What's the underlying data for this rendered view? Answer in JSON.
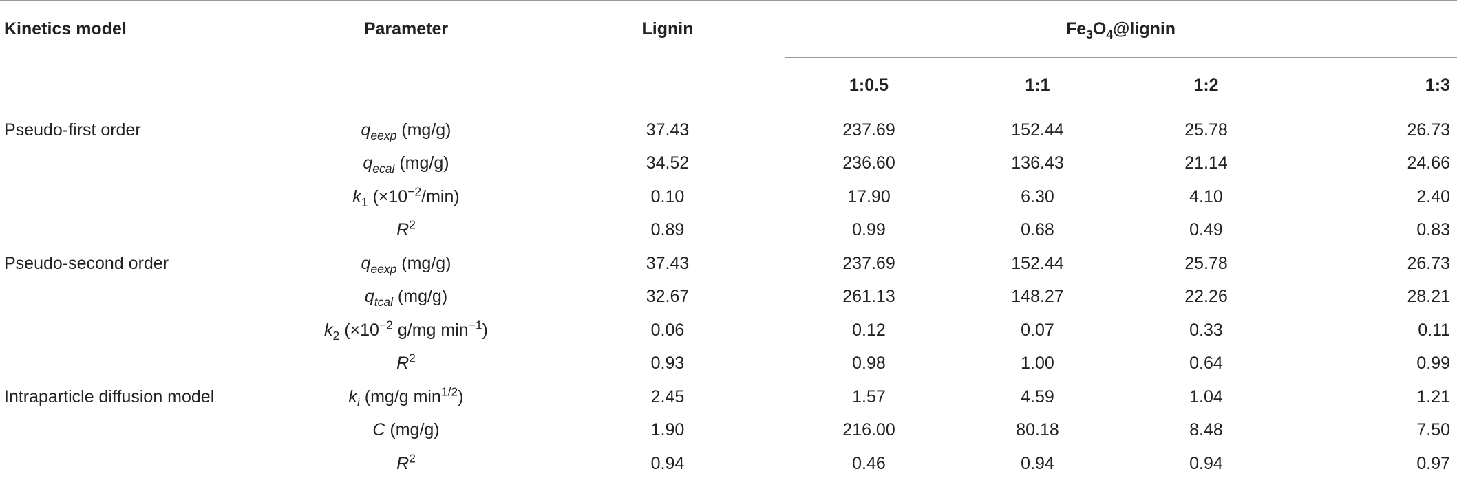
{
  "headers": {
    "kinetics_model": "Kinetics model",
    "parameter": "Parameter",
    "lignin": "Lignin",
    "fe_group": {
      "pre": "Fe",
      "sub1": "3",
      "mid": "O",
      "sub2": "4",
      "post": "@lignin"
    },
    "ratios": [
      "1:0.5",
      "1:1",
      "1:2",
      "1:3"
    ]
  },
  "rows": [
    {
      "model": "Pseudo-first order",
      "param": {
        "sym": "q",
        "sub": "eexp",
        "pre_sup": "",
        "sup": "",
        "unit": " (mg/g)",
        "unit_sup": "",
        "unit_tail": ""
      },
      "values": [
        "37.43",
        "237.69",
        "152.44",
        "25.78",
        "26.73"
      ]
    },
    {
      "model": "",
      "param": {
        "sym": "q",
        "sub": "ecal",
        "pre_sup": "",
        "sup": "",
        "unit": " (mg/g)",
        "unit_sup": "",
        "unit_tail": ""
      },
      "values": [
        "34.52",
        "236.60",
        "136.43",
        "21.14",
        "24.66"
      ]
    },
    {
      "model": "",
      "param": {
        "sym": "k",
        "sub": "1",
        "sub_upright": true,
        "pre_sup": "",
        "sup": "",
        "unit": " (×10",
        "unit_sup": "−2",
        "unit_tail": "/min)"
      },
      "values": [
        "0.10",
        "17.90",
        "6.30",
        "4.10",
        "2.40"
      ]
    },
    {
      "model": "",
      "param": {
        "sym": "R",
        "sub": "",
        "pre_sup": "",
        "sup": "2",
        "unit": "",
        "unit_sup": "",
        "unit_tail": ""
      },
      "values": [
        "0.89",
        "0.99",
        "0.68",
        "0.49",
        "0.83"
      ]
    },
    {
      "model": "Pseudo-second order",
      "param": {
        "sym": "q",
        "sub": "eexp",
        "pre_sup": "",
        "sup": "",
        "unit": " (mg/g)",
        "unit_sup": "",
        "unit_tail": ""
      },
      "values": [
        "37.43",
        "237.69",
        "152.44",
        "25.78",
        "26.73"
      ]
    },
    {
      "model": "",
      "param": {
        "sym": "q",
        "sub": "tcal",
        "pre_sup": "",
        "sup": "",
        "unit": " (mg/g)",
        "unit_sup": "",
        "unit_tail": ""
      },
      "values": [
        "32.67",
        "261.13",
        "148.27",
        "22.26",
        "28.21"
      ]
    },
    {
      "model": "",
      "param": {
        "sym": "k",
        "sub": "2",
        "sub_upright": true,
        "pre_sup": "",
        "sup": "",
        "unit": " (×10",
        "unit_sup": "−2",
        "unit_tail": " g/mg min",
        "tail_sup": "−1",
        "close": ")"
      },
      "values": [
        "0.06",
        "0.12",
        "0.07",
        "0.33",
        "0.11"
      ]
    },
    {
      "model": "",
      "param": {
        "sym": "R",
        "sub": "",
        "pre_sup": "",
        "sup": "2",
        "unit": "",
        "unit_sup": "",
        "unit_tail": ""
      },
      "values": [
        "0.93",
        "0.98",
        "1.00",
        "0.64",
        "0.99"
      ]
    },
    {
      "model": "Intraparticle diffusion model",
      "param": {
        "sym": "k",
        "sub": "i",
        "pre_sup": "",
        "sup": "",
        "unit": " (mg/g min",
        "unit_sup": "1/2",
        "unit_tail": ")"
      },
      "values": [
        "2.45",
        "1.57",
        "4.59",
        "1.04",
        "1.21"
      ]
    },
    {
      "model": "",
      "param": {
        "sym": "C",
        "sub": "",
        "pre_sup": "",
        "sup": "",
        "unit": " (mg/g)",
        "unit_sup": "",
        "unit_tail": ""
      },
      "values": [
        "1.90",
        "216.00",
        "80.18",
        "8.48",
        "7.50"
      ]
    },
    {
      "model": "",
      "param": {
        "sym": "R",
        "sub": "",
        "pre_sup": "",
        "sup": "2",
        "unit": "",
        "unit_sup": "",
        "unit_tail": ""
      },
      "values": [
        "0.94",
        "0.46",
        "0.94",
        "0.94",
        "0.97"
      ]
    }
  ]
}
